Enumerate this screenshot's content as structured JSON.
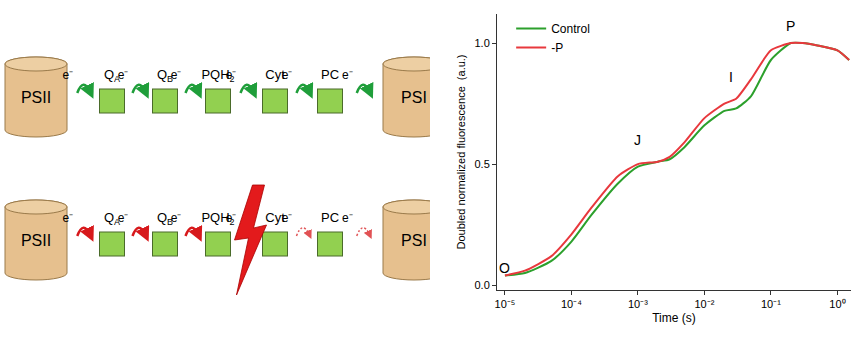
{
  "diagram": {
    "rows": [
      {
        "nodes": [
          {
            "label": "PSII",
            "shape": "cylinder"
          },
          {
            "label": "Q",
            "sub": "A",
            "shape": "box"
          },
          {
            "label": "Q",
            "sub": "B",
            "shape": "box"
          },
          {
            "label": "PQH",
            "sub": "2",
            "shape": "box"
          },
          {
            "label": "Cyt",
            "shape": "box"
          },
          {
            "label": "PC",
            "shape": "box"
          },
          {
            "label": "PSI",
            "shape": "cylinder"
          }
        ],
        "arrows": [
          {
            "label": "e⁻",
            "color": "#1f9e3a",
            "line_style": "solid"
          },
          {
            "label": "e⁻",
            "color": "#1f9e3a",
            "line_style": "solid"
          },
          {
            "label": "e⁻",
            "color": "#1f9e3a",
            "line_style": "solid"
          },
          {
            "label": "e⁻",
            "color": "#1f9e3a",
            "line_style": "solid"
          },
          {
            "label": "e⁻",
            "color": "#1f9e3a",
            "line_style": "solid"
          },
          {
            "label": "e⁻",
            "color": "#1f9e3a",
            "line_style": "solid"
          }
        ]
      },
      {
        "nodes": [
          {
            "label": "PSII",
            "shape": "cylinder"
          },
          {
            "label": "Q",
            "sub": "A",
            "shape": "box"
          },
          {
            "label": "Q",
            "sub": "B",
            "shape": "box"
          },
          {
            "label": "PQH",
            "sub": "2",
            "shape": "box"
          },
          {
            "label": "Cyt",
            "shape": "box"
          },
          {
            "label": "PC",
            "shape": "box"
          },
          {
            "label": "PSI",
            "shape": "cylinder"
          }
        ],
        "arrows": [
          {
            "label": "e⁻",
            "color": "#d7191c",
            "line_style": "solid"
          },
          {
            "label": "e⁻",
            "color": "#d7191c",
            "line_style": "solid"
          },
          {
            "label": "e⁻",
            "color": "#d7191c",
            "line_style": "solid"
          },
          {
            "label": "e⁻",
            "color": "#d7191c",
            "line_style": "dashed"
          },
          {
            "label": "e⁻",
            "color": "#d7191c",
            "line_style": "dashed"
          },
          {
            "label": "e⁻",
            "color": "#d7191c",
            "line_style": "dashed"
          }
        ],
        "blocked_at_arrow": 3
      }
    ]
  },
  "chart_data": {
    "type": "line",
    "x_label": "Time (s)",
    "y_label": "Doubled normalized fluorescence  (a.u.)",
    "log": "x",
    "grid": false,
    "legend": "upper left",
    "x": [
      1e-05,
      2e-05,
      5e-05,
      0.0001,
      0.0002,
      0.0005,
      0.001,
      0.002,
      0.003,
      0.005,
      0.01,
      0.02,
      0.03,
      0.05,
      0.1,
      0.2,
      0.3,
      0.5,
      1,
      1.5
    ],
    "series": [
      {
        "name": "Control",
        "color": "#2ca02c",
        "values": [
          0.04,
          0.05,
          0.1,
          0.18,
          0.29,
          0.42,
          0.49,
          0.51,
          0.52,
          0.57,
          0.66,
          0.72,
          0.73,
          0.78,
          0.93,
          1.0,
          1.0,
          0.99,
          0.97,
          0.93
        ]
      },
      {
        "name": "-P",
        "color": "#e8383d",
        "values": [
          0.04,
          0.06,
          0.12,
          0.21,
          0.32,
          0.45,
          0.5,
          0.51,
          0.53,
          0.59,
          0.69,
          0.75,
          0.77,
          0.85,
          0.97,
          1.0,
          1.0,
          0.99,
          0.97,
          0.93
        ]
      }
    ],
    "xlim": [
      7.6e-06,
      1.6
    ],
    "xticks": [
      {
        "value": 1e-05,
        "label": "10⁻⁵"
      },
      {
        "value": 0.0001,
        "label": "10⁻⁴"
      },
      {
        "value": 0.001,
        "label": "10⁻³"
      },
      {
        "value": 0.01,
        "label": "10⁻²"
      },
      {
        "value": 0.1,
        "label": "10⁻¹"
      },
      {
        "value": 1,
        "label": "10⁰"
      }
    ],
    "ylim": [
      -0.02,
      1.12
    ],
    "yticks": [
      {
        "value": 0,
        "label": "0.0"
      },
      0.5,
      {
        "value": 1,
        "label": "1.0"
      }
    ],
    "annotations": [
      {
        "text": "O",
        "x": 1e-05,
        "y": 0.07
      },
      {
        "text": "J",
        "x": 0.001,
        "y": 0.6
      },
      {
        "text": "I",
        "x": 0.025,
        "y": 0.86
      },
      {
        "text": "P",
        "x": 0.2,
        "y": 1.07
      }
    ]
  }
}
